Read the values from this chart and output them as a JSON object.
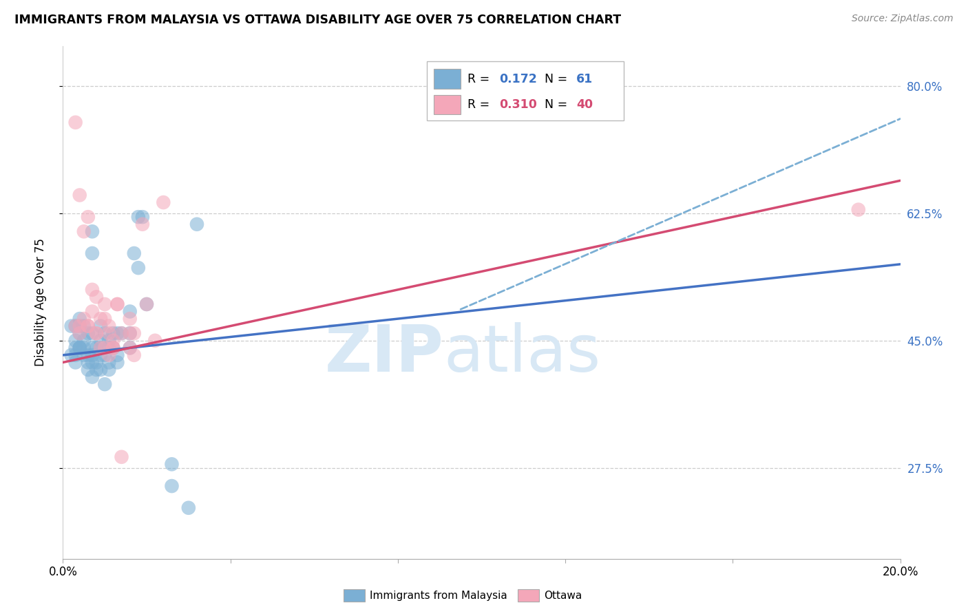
{
  "title": "IMMIGRANTS FROM MALAYSIA VS OTTAWA DISABILITY AGE OVER 75 CORRELATION CHART",
  "source": "Source: ZipAtlas.com",
  "ylabel": "Disability Age Over 75",
  "xlim": [
    0.0,
    0.2
  ],
  "ylim": [
    0.15,
    0.855
  ],
  "ytick_positions": [
    0.275,
    0.45,
    0.625,
    0.8
  ],
  "ytick_labels": [
    "27.5%",
    "45.0%",
    "62.5%",
    "80.0%"
  ],
  "blue_color": "#7BAFD4",
  "pink_color": "#F4A7B9",
  "blue_line_color": "#4472C4",
  "pink_line_color": "#D44B72",
  "dashed_line_color": "#7BAFD4",
  "watermark_color": "#D8E8F5",
  "background_color": "#FFFFFF",
  "grid_color": "#CCCCCC",
  "blue_scatter_x": [
    0.002,
    0.003,
    0.003,
    0.003,
    0.003,
    0.004,
    0.004,
    0.004,
    0.004,
    0.004,
    0.004,
    0.005,
    0.005,
    0.005,
    0.005,
    0.006,
    0.006,
    0.006,
    0.006,
    0.007,
    0.007,
    0.007,
    0.007,
    0.007,
    0.007,
    0.007,
    0.008,
    0.008,
    0.008,
    0.009,
    0.009,
    0.009,
    0.009,
    0.009,
    0.01,
    0.01,
    0.01,
    0.011,
    0.011,
    0.011,
    0.011,
    0.012,
    0.012,
    0.013,
    0.013,
    0.013,
    0.014,
    0.016,
    0.016,
    0.016,
    0.017,
    0.018,
    0.019,
    0.02,
    0.026,
    0.026,
    0.03,
    0.032,
    0.002,
    0.003,
    0.018
  ],
  "blue_scatter_y": [
    0.47,
    0.43,
    0.44,
    0.45,
    0.47,
    0.44,
    0.44,
    0.44,
    0.46,
    0.47,
    0.48,
    0.43,
    0.44,
    0.45,
    0.47,
    0.41,
    0.42,
    0.43,
    0.46,
    0.4,
    0.42,
    0.43,
    0.44,
    0.46,
    0.57,
    0.6,
    0.41,
    0.42,
    0.44,
    0.41,
    0.43,
    0.44,
    0.45,
    0.47,
    0.39,
    0.43,
    0.46,
    0.41,
    0.42,
    0.44,
    0.45,
    0.44,
    0.46,
    0.42,
    0.43,
    0.46,
    0.46,
    0.44,
    0.46,
    0.49,
    0.57,
    0.62,
    0.62,
    0.5,
    0.28,
    0.25,
    0.22,
    0.61,
    0.43,
    0.42,
    0.55
  ],
  "pink_scatter_x": [
    0.003,
    0.004,
    0.004,
    0.005,
    0.005,
    0.006,
    0.006,
    0.007,
    0.007,
    0.008,
    0.008,
    0.009,
    0.01,
    0.01,
    0.011,
    0.011,
    0.012,
    0.012,
    0.013,
    0.014,
    0.016,
    0.016,
    0.017,
    0.017,
    0.019,
    0.02,
    0.022,
    0.024,
    0.003,
    0.004,
    0.006,
    0.008,
    0.009,
    0.01,
    0.011,
    0.012,
    0.013,
    0.014,
    0.016,
    0.19
  ],
  "pink_scatter_y": [
    0.75,
    0.46,
    0.65,
    0.48,
    0.6,
    0.47,
    0.62,
    0.49,
    0.52,
    0.51,
    0.46,
    0.44,
    0.48,
    0.44,
    0.43,
    0.46,
    0.44,
    0.45,
    0.5,
    0.29,
    0.48,
    0.46,
    0.43,
    0.46,
    0.61,
    0.5,
    0.45,
    0.64,
    0.47,
    0.47,
    0.47,
    0.46,
    0.48,
    0.5,
    0.47,
    0.44,
    0.5,
    0.46,
    0.44,
    0.63
  ],
  "blue_line_x0": 0.0,
  "blue_line_y0": 0.43,
  "blue_line_x1": 0.2,
  "blue_line_y1": 0.555,
  "pink_line_x0": 0.0,
  "pink_line_y0": 0.42,
  "pink_line_x1": 0.2,
  "pink_line_y1": 0.67,
  "dashed_line_x0": 0.095,
  "dashed_line_y0": 0.493,
  "dashed_line_x1": 0.2,
  "dashed_line_y1": 0.755
}
